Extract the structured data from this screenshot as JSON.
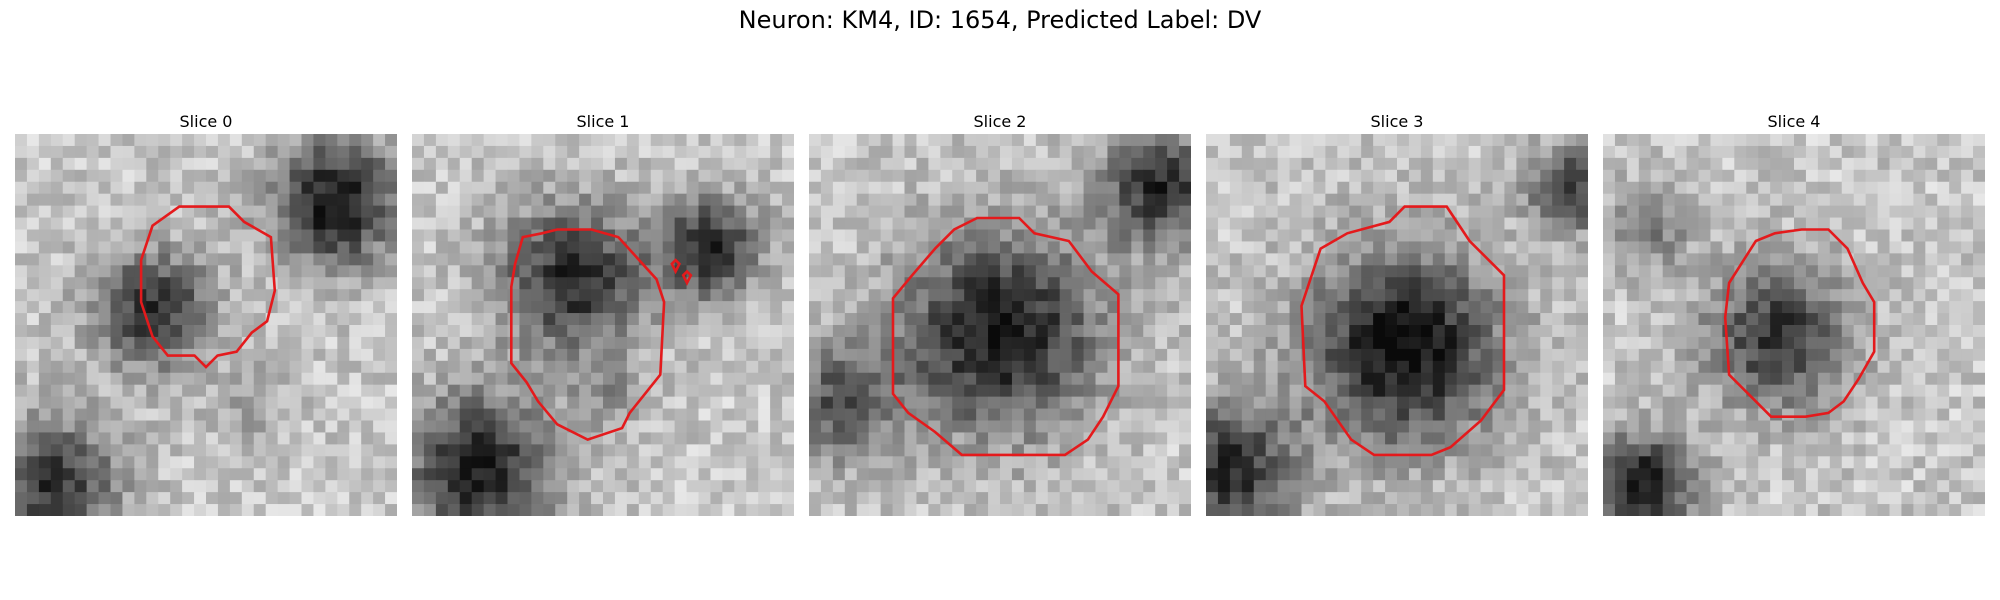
{
  "figure": {
    "title": "Neuron: KM4, ID: 1654, Predicted Label: DV"
  },
  "contour_color": "#e41a1c",
  "colormap": "gray",
  "panels": [
    {
      "title": "Slice 0"
    },
    {
      "title": "Slice 1"
    },
    {
      "title": "Slice 2"
    },
    {
      "title": "Slice 3"
    },
    {
      "title": "Slice 4"
    }
  ]
}
